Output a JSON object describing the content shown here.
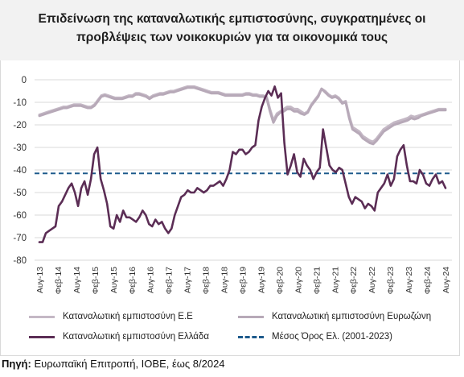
{
  "title": {
    "line1": "Επιδείνωση της καταναλωτικής εμπιστοσύνης, συγκρατημένες οι",
    "line2": "προβλέψεις των νοικοκυριών για τα οικονομικά τους"
  },
  "source": {
    "label": "Πηγή:",
    "text": "Ευρωπαϊκή Επιτροπή, ΙΟΒΕ, έως 8/2024"
  },
  "legend": {
    "eu": "Καταναλωτική εμπιστοσύνη Ε.Ε",
    "ez": "Καταναλωτική εμπιστοσύνη Ευρωζώνη",
    "gr": "Καταναλωτική εμπιστοσύνη Ελλάδα",
    "avg": "Μέσος Όρος Ελ. (2001-2023)"
  },
  "colors": {
    "eu": "#c4b8c5",
    "ez": "#b7a9b8",
    "gr": "#5b2d55",
    "avg": "#1d5a8c",
    "grid": "#d9d9d9"
  },
  "chart_data": {
    "type": "line",
    "x_start": "Αυγ-13",
    "x_end": "Αυγ-24",
    "x_tick_labels": [
      "Αυγ-13",
      "Φεβ-14",
      "Αυγ-14",
      "Φεβ-15",
      "Αυγ-15",
      "Φεβ-16",
      "Αυγ-16",
      "Φεβ-17",
      "Αυγ-17",
      "Φεβ-18",
      "Αυγ-18",
      "Φεβ-19",
      "Αυγ-19",
      "Φεβ-20",
      "Αυγ-20",
      "Φεβ-21",
      "Αυγ-21",
      "Φεβ-22",
      "Αυγ-22",
      "Φεβ-23",
      "Αυγ-23",
      "Φεβ-24",
      "Αυγ-24"
    ],
    "ylim": [
      -80,
      0
    ],
    "y_ticks": [
      0,
      -10,
      -20,
      -30,
      -40,
      -50,
      -60,
      -70,
      -80
    ],
    "grid": "horizontal",
    "legend_position": "bottom",
    "series": [
      {
        "key": "eu",
        "name": "Καταναλωτική εμπιστοσύνη Ε.Ε",
        "values": [
          -15.5,
          -15,
          -14.5,
          -14,
          -13.5,
          -13,
          -12.5,
          -12,
          -12,
          -11.5,
          -11,
          -11,
          -11,
          -11.5,
          -12,
          -12,
          -11,
          -9,
          -7,
          -6.5,
          -7,
          -7.5,
          -8,
          -8,
          -8,
          -7.5,
          -7,
          -7,
          -6,
          -6,
          -6.5,
          -7,
          -8,
          -7,
          -6.5,
          -6,
          -6,
          -5.5,
          -5,
          -5,
          -4.5,
          -4,
          -3.5,
          -3,
          -3,
          -3,
          -3.5,
          -4,
          -4.5,
          -5,
          -5.5,
          -5.5,
          -5.5,
          -6,
          -6.5,
          -6.5,
          -6.5,
          -6.5,
          -6.5,
          -6.5,
          -6,
          -6,
          -6.5,
          -6.5,
          -7,
          -7,
          -7.5,
          -13,
          -18,
          -15,
          -14,
          -13,
          -12,
          -12,
          -13,
          -13,
          -14,
          -15,
          -14,
          -11,
          -9,
          -7,
          -4,
          -5,
          -6.5,
          -7.5,
          -7,
          -8,
          -10,
          -9.5,
          -16,
          -21,
          -22,
          -23,
          -25,
          -26,
          -27,
          -27.5,
          -26,
          -24,
          -22,
          -21,
          -20,
          -19,
          -18.5,
          -18,
          -17.5,
          -17,
          -16,
          -16.5,
          -16,
          -15.5,
          -15,
          -14.5,
          -14,
          -13.5,
          -13,
          -13,
          -13
        ]
      },
      {
        "key": "ez",
        "name": "Καταναλωτική εμπιστοσύνη Ευρωζώνη",
        "values": [
          -16,
          -15.5,
          -15,
          -14.5,
          -14,
          -13.5,
          -13,
          -12.5,
          -12.5,
          -12,
          -11.5,
          -11.5,
          -11.5,
          -12,
          -12.5,
          -12.5,
          -11.5,
          -9.5,
          -7.5,
          -7,
          -7.5,
          -8,
          -8.5,
          -8.5,
          -8.5,
          -8,
          -7.5,
          -7.5,
          -6.5,
          -6.5,
          -7,
          -7.5,
          -8.5,
          -7.5,
          -7,
          -6.5,
          -6.5,
          -6,
          -5.5,
          -5.5,
          -5,
          -4.5,
          -4,
          -3.5,
          -3.5,
          -3.5,
          -4,
          -4.5,
          -5,
          -5.5,
          -6,
          -6,
          -6,
          -6.5,
          -7,
          -7,
          -7,
          -7,
          -7,
          -7,
          -6.5,
          -6.5,
          -7,
          -7,
          -7.5,
          -7.5,
          -8,
          -14,
          -19,
          -16,
          -14.5,
          -14,
          -13,
          -13,
          -14,
          -14,
          -15,
          -15.5,
          -14.5,
          -11.5,
          -9.5,
          -7.5,
          -4,
          -5.5,
          -7,
          -8,
          -7.5,
          -8.5,
          -10.5,
          -10,
          -17,
          -22,
          -23,
          -24,
          -26,
          -27,
          -28,
          -28.5,
          -27,
          -25,
          -23,
          -22,
          -21,
          -20,
          -19.5,
          -19,
          -18.5,
          -18,
          -17,
          -17.5,
          -17,
          -16,
          -15.5,
          -15,
          -14.5,
          -14,
          -13.5,
          -13.5,
          -13.5
        ]
      },
      {
        "key": "gr",
        "name": "Καταναλωτική εμπιστοσύνη Ελλάδα",
        "values": [
          -72,
          -72,
          -68,
          -67,
          -66,
          -65,
          -56,
          -54,
          -51,
          -48,
          -46,
          -50,
          -56,
          -48,
          -45,
          -51,
          -44,
          -33,
          -30,
          -44,
          -49,
          -55,
          -65,
          -66,
          -60,
          -63,
          -58,
          -61,
          -61,
          -62,
          -63,
          -61,
          -58,
          -60,
          -64,
          -65,
          -62,
          -64,
          -63,
          -66,
          -68,
          -66,
          -60,
          -56,
          -52,
          -51,
          -49,
          -50,
          -50,
          -48,
          -49,
          -50,
          -49,
          -47,
          -47,
          -46,
          -45,
          -47,
          -44,
          -40,
          -32,
          -33,
          -31,
          -31,
          -33,
          -32,
          -30,
          -29,
          -18,
          -12,
          -8,
          -5,
          -7,
          -3,
          -8,
          -6,
          -28,
          -42,
          -38,
          -33,
          -41,
          -43,
          -35,
          -38,
          -40,
          -44,
          -41,
          -39,
          -22,
          -30,
          -38,
          -40,
          -41,
          -39,
          -40,
          -46,
          -52,
          -55,
          -52,
          -53,
          -54,
          -57,
          -55,
          -56,
          -58,
          -50,
          -48,
          -46,
          -42,
          -47,
          -44,
          -34,
          -31,
          -29,
          -38,
          -45,
          -45,
          -46,
          -40,
          -42,
          -46,
          -47,
          -44,
          -42,
          -46,
          -45,
          -48
        ]
      },
      {
        "key": "avg",
        "name": "Μέσος Όρος Ελ. (2001-2023)",
        "constant": -41.5
      }
    ]
  }
}
